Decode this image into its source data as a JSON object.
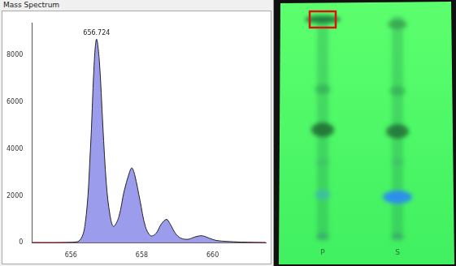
{
  "chart_data": {
    "type": "line",
    "title": "Mass Spectrum",
    "x": [
      654.9,
      655.5,
      656.2,
      656.4,
      656.55,
      656.65,
      656.72,
      656.8,
      656.9,
      657.0,
      657.1,
      657.2,
      657.35,
      657.5,
      657.65,
      657.72,
      657.8,
      657.95,
      658.1,
      658.25,
      658.4,
      658.55,
      658.7,
      658.8,
      658.95,
      659.1,
      659.3,
      659.5,
      659.7,
      659.9,
      660.1,
      660.4,
      660.8,
      661.5
    ],
    "series": [
      {
        "color": "#9c9cec",
        "values": [
          0,
          0,
          50,
          800,
          4000,
          7500,
          8700,
          7800,
          5000,
          2500,
          1200,
          700,
          1100,
          2200,
          3000,
          3200,
          2900,
          1800,
          700,
          300,
          400,
          800,
          1000,
          800,
          400,
          200,
          150,
          250,
          300,
          200,
          100,
          60,
          30,
          0
        ]
      },
      {
        "color": "#e04040",
        "values": [
          20,
          20,
          20,
          20,
          20,
          20,
          20,
          20,
          20,
          20,
          20,
          20,
          20,
          20,
          20,
          20,
          20,
          20,
          20,
          20,
          20,
          20,
          20,
          20,
          20,
          20,
          20,
          20,
          20,
          20,
          20,
          20,
          20,
          20
        ]
      }
    ],
    "annotations": [
      {
        "text": "656.724",
        "x": 656.724,
        "y": 8700
      }
    ],
    "xlim": [
      654.9,
      661.5
    ],
    "xticks": [
      656,
      658,
      660
    ],
    "ylim": [
      0,
      9400
    ],
    "yticks": [
      0,
      2000,
      4000,
      6000,
      8000
    ],
    "grid": false
  },
  "plate": {
    "lanes": [
      "P",
      "S"
    ]
  }
}
